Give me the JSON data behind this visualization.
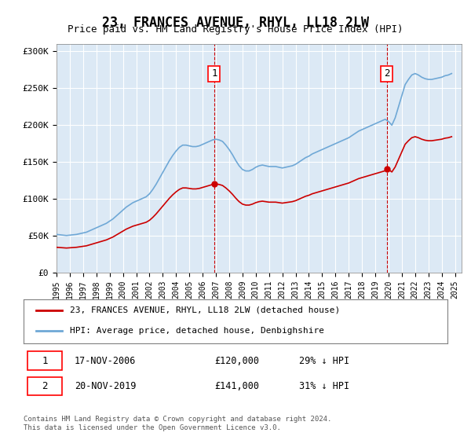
{
  "title": "23, FRANCES AVENUE, RHYL, LL18 2LW",
  "subtitle": "Price paid vs. HM Land Registry's House Price Index (HPI)",
  "ylabel_ticks": [
    "£0",
    "£50K",
    "£100K",
    "£150K",
    "£200K",
    "£250K",
    "£300K"
  ],
  "ytick_values": [
    0,
    50000,
    100000,
    150000,
    200000,
    250000,
    300000
  ],
  "ylim": [
    0,
    310000
  ],
  "xlim_start": 1995.0,
  "xlim_end": 2025.5,
  "background_color": "#dce9f5",
  "plot_bg_color": "#dce9f5",
  "grid_color": "#ffffff",
  "hpi_color": "#6fa8d6",
  "price_color": "#cc0000",
  "vline_color": "#cc0000",
  "sale1_x": 2006.88,
  "sale1_y": 120000,
  "sale1_label": "1",
  "sale2_x": 2019.88,
  "sale2_y": 141000,
  "sale2_label": "2",
  "legend_line1": "23, FRANCES AVENUE, RHYL, LL18 2LW (detached house)",
  "legend_line2": "HPI: Average price, detached house, Denbighshire",
  "table_row1": "1    17-NOV-2006         £120,000        29% ↓ HPI",
  "table_row2": "2    20-NOV-2019         £141,000        31% ↓ HPI",
  "footnote": "Contains HM Land Registry data © Crown copyright and database right 2024.\nThis data is licensed under the Open Government Licence v3.0.",
  "title_fontsize": 12,
  "subtitle_fontsize": 10,
  "axis_fontsize": 9,
  "hpi_data_x": [
    1995.0,
    1995.25,
    1995.5,
    1995.75,
    1996.0,
    1996.25,
    1996.5,
    1996.75,
    1997.0,
    1997.25,
    1997.5,
    1997.75,
    1998.0,
    1998.25,
    1998.5,
    1998.75,
    1999.0,
    1999.25,
    1999.5,
    1999.75,
    2000.0,
    2000.25,
    2000.5,
    2000.75,
    2001.0,
    2001.25,
    2001.5,
    2001.75,
    2002.0,
    2002.25,
    2002.5,
    2002.75,
    2003.0,
    2003.25,
    2003.5,
    2003.75,
    2004.0,
    2004.25,
    2004.5,
    2004.75,
    2005.0,
    2005.25,
    2005.5,
    2005.75,
    2006.0,
    2006.25,
    2006.5,
    2006.75,
    2007.0,
    2007.25,
    2007.5,
    2007.75,
    2008.0,
    2008.25,
    2008.5,
    2008.75,
    2009.0,
    2009.25,
    2009.5,
    2009.75,
    2010.0,
    2010.25,
    2010.5,
    2010.75,
    2011.0,
    2011.25,
    2011.5,
    2011.75,
    2012.0,
    2012.25,
    2012.5,
    2012.75,
    2013.0,
    2013.25,
    2013.5,
    2013.75,
    2014.0,
    2014.25,
    2014.5,
    2014.75,
    2015.0,
    2015.25,
    2015.5,
    2015.75,
    2016.0,
    2016.25,
    2016.5,
    2016.75,
    2017.0,
    2017.25,
    2017.5,
    2017.75,
    2018.0,
    2018.25,
    2018.5,
    2018.75,
    2019.0,
    2019.25,
    2019.5,
    2019.75,
    2020.0,
    2020.25,
    2020.5,
    2020.75,
    2021.0,
    2021.25,
    2021.5,
    2021.75,
    2022.0,
    2022.25,
    2022.5,
    2022.75,
    2023.0,
    2023.25,
    2023.5,
    2023.75,
    2024.0,
    2024.25,
    2024.5,
    2024.75
  ],
  "hpi_data_y": [
    52000,
    51500,
    51000,
    50500,
    51000,
    51500,
    52000,
    53000,
    54000,
    55000,
    57000,
    59000,
    61000,
    63000,
    65000,
    67000,
    70000,
    73000,
    77000,
    81000,
    85000,
    89000,
    92000,
    95000,
    97000,
    99000,
    101000,
    103000,
    107000,
    113000,
    120000,
    128000,
    136000,
    144000,
    152000,
    159000,
    165000,
    170000,
    173000,
    173000,
    172000,
    171000,
    171000,
    172000,
    174000,
    176000,
    178000,
    180000,
    181000,
    180000,
    178000,
    173000,
    167000,
    160000,
    152000,
    145000,
    140000,
    138000,
    138000,
    140000,
    143000,
    145000,
    146000,
    145000,
    144000,
    144000,
    144000,
    143000,
    142000,
    143000,
    144000,
    145000,
    147000,
    150000,
    153000,
    156000,
    158000,
    161000,
    163000,
    165000,
    167000,
    169000,
    171000,
    173000,
    175000,
    177000,
    179000,
    181000,
    183000,
    186000,
    189000,
    192000,
    194000,
    196000,
    198000,
    200000,
    202000,
    204000,
    206000,
    208000,
    205000,
    200000,
    210000,
    225000,
    240000,
    255000,
    262000,
    268000,
    270000,
    268000,
    265000,
    263000,
    262000,
    262000,
    263000,
    264000,
    265000,
    267000,
    268000,
    270000
  ],
  "price_data_x": [
    2006.88,
    2019.88
  ],
  "price_data_y": [
    120000,
    141000
  ]
}
